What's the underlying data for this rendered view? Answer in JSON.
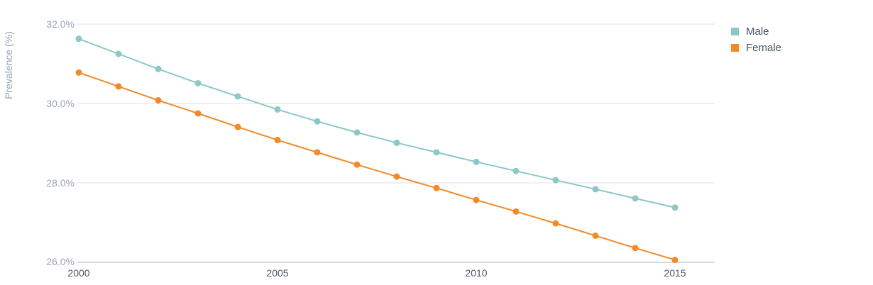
{
  "chart_data": {
    "type": "line",
    "title": "",
    "xlabel": "",
    "ylabel": "Prevalence (%)",
    "x": [
      2000,
      2001,
      2002,
      2003,
      2004,
      2005,
      2006,
      2007,
      2008,
      2009,
      2010,
      2011,
      2012,
      2013,
      2014,
      2015
    ],
    "xticks": [
      "2000",
      "2005",
      "2010",
      "2015"
    ],
    "xlim": [
      2000,
      2016
    ],
    "ylim": [
      26.0,
      32.0
    ],
    "yticks": [
      "26.0%",
      "28.0%",
      "30.0%",
      "32.0%"
    ],
    "grid": "horizontal",
    "legend_position": "top-right",
    "series": [
      {
        "name": "Male",
        "color": "#8bc8c7",
        "values": [
          31.63,
          31.25,
          30.87,
          30.51,
          30.18,
          29.85,
          29.55,
          29.27,
          29.01,
          28.77,
          28.53,
          28.3,
          28.07,
          27.84,
          27.61,
          27.38
        ]
      },
      {
        "name": "Female",
        "color": "#f28a2a",
        "values": [
          30.78,
          30.43,
          30.08,
          29.75,
          29.41,
          29.08,
          28.77,
          28.46,
          28.16,
          27.87,
          27.57,
          27.28,
          26.98,
          26.67,
          26.36,
          26.06
        ]
      }
    ]
  }
}
